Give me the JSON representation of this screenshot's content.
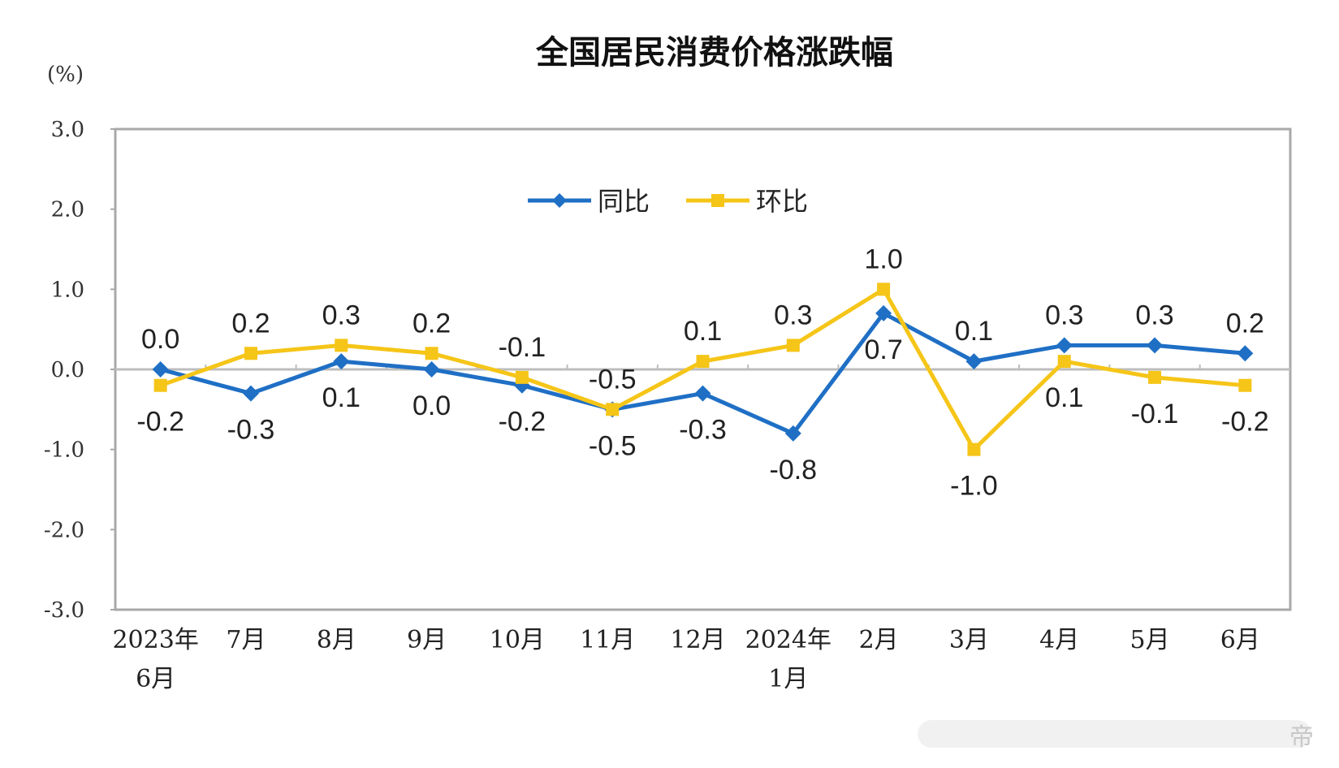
{
  "chart_data": {
    "type": "line",
    "title": "全国居民消费价格涨跌幅",
    "unit_label": "(%)",
    "ylim": [
      -3.0,
      3.0
    ],
    "yticks": [
      "3.0",
      "2.0",
      "1.0",
      "0.0",
      "-1.0",
      "-2.0",
      "-3.0"
    ],
    "categories": [
      [
        "2023年",
        "6月"
      ],
      [
        "7月"
      ],
      [
        "8月"
      ],
      [
        "9月"
      ],
      [
        "10月"
      ],
      [
        "11月"
      ],
      [
        "12月"
      ],
      [
        "2024年",
        "1月"
      ],
      [
        "2月"
      ],
      [
        "3月"
      ],
      [
        "4月"
      ],
      [
        "5月"
      ],
      [
        "6月"
      ]
    ],
    "series": [
      {
        "name": "同比",
        "color": "#1f6fc5",
        "marker": "diamond",
        "values": [
          0.0,
          -0.3,
          0.1,
          0.0,
          -0.2,
          -0.5,
          -0.3,
          -0.8,
          0.7,
          0.1,
          0.3,
          0.3,
          0.2
        ],
        "labels": [
          "0.0",
          "-0.3",
          "0.1",
          "0.0",
          "-0.2",
          "-0.5",
          "-0.3",
          "-0.8",
          "0.7",
          "0.1",
          "0.3",
          "0.3",
          "0.2"
        ]
      },
      {
        "name": "环比",
        "color": "#f5c518",
        "marker": "square",
        "values": [
          -0.2,
          0.2,
          0.3,
          0.2,
          -0.1,
          -0.5,
          0.1,
          0.3,
          1.0,
          -1.0,
          0.1,
          -0.1,
          -0.2
        ],
        "labels": [
          "-0.2",
          "0.2",
          "0.3",
          "0.2",
          "-0.1",
          "-0.5",
          "0.1",
          "0.3",
          "1.0",
          "-1.0",
          "0.1",
          "-0.1",
          "-0.2"
        ]
      }
    ],
    "legend": "top-center",
    "grid": false,
    "zero_line_color": "#bdbdbd",
    "frame_color": "#a9a9a9"
  },
  "watermark": "帝"
}
